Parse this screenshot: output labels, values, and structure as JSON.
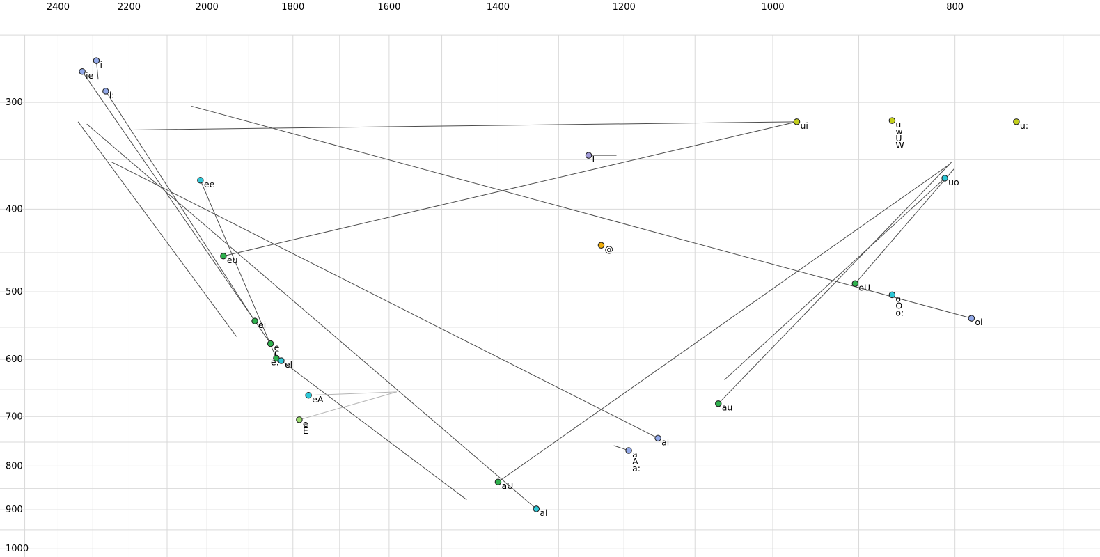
{
  "chart_data": {
    "type": "scatter",
    "title": "",
    "description": "Vowel formant plot: F2 (Hz, reversed, log scale) on x-axis vs F1 (Hz, reversed, log scale) on y-axis, with diphthong trajectory lines",
    "x_axis": {
      "unit": "Hz",
      "scale": "log",
      "direction": "reversed",
      "grid": [
        2500,
        2400,
        2300,
        2200,
        2100,
        2000,
        1900,
        1800,
        1700,
        1600,
        1500,
        1400,
        1300,
        1200,
        1100,
        1000,
        900,
        800,
        700
      ],
      "tick_labels": [
        2400,
        2200,
        2000,
        1800,
        1600,
        1400,
        1200,
        1000,
        800
      ]
    },
    "y_axis": {
      "unit": "Hz",
      "scale": "log",
      "direction": "reversed",
      "grid": [
        250,
        300,
        350,
        400,
        450,
        500,
        550,
        600,
        650,
        700,
        750,
        800,
        850,
        900,
        950,
        1000
      ],
      "tick_labels": [
        300,
        400,
        500,
        600,
        700,
        800,
        900,
        1000
      ]
    },
    "palette": {
      "blue": "#92a8e8",
      "cyan": "#2ec7d6",
      "green": "#2fb04d",
      "yellowgreen": "#c3cf1c",
      "orange": "#f0ad0a",
      "purple": "#a09ad8",
      "lightgreen": "#9bdc6e",
      "line_dark": "#4d4d4d",
      "line_light": "#b5b5b5",
      "grid": "#d9d9d9",
      "text": "#000000"
    },
    "points": [
      {
        "id": "i",
        "label_lines": [
          "i"
        ],
        "f2": 2290,
        "f1": 268,
        "color": "blue"
      },
      {
        "id": "ie",
        "label_lines": [
          "ie"
        ],
        "f2": 2330,
        "f1": 276,
        "color": "blue"
      },
      {
        "id": "i-long",
        "label_lines": [
          "i:"
        ],
        "f2": 2264,
        "f1": 291,
        "color": "blue"
      },
      {
        "id": "ee",
        "label_lines": [
          "ee"
        ],
        "f2": 2016,
        "f1": 370,
        "color": "cyan"
      },
      {
        "id": "eu",
        "label_lines": [
          "eu"
        ],
        "f2": 1960,
        "f1": 454,
        "color": "green"
      },
      {
        "id": "ei",
        "label_lines": [
          "ei"
        ],
        "f2": 1886,
        "f1": 541,
        "color": "green"
      },
      {
        "id": "e",
        "label_lines": [
          "e",
          "E"
        ],
        "f2": 1850,
        "f1": 575,
        "color": "green"
      },
      {
        "id": "e-long",
        "label_lines": [
          "e:"
        ],
        "f2": 1837,
        "f1": 598,
        "color": "green",
        "label_dx": -8
      },
      {
        "id": "el",
        "label_lines": [
          "el"
        ],
        "f2": 1826,
        "f1": 602,
        "color": "cyan",
        "label_dx": 5
      },
      {
        "id": "eA",
        "label_lines": [
          "eA"
        ],
        "f2": 1766,
        "f1": 661,
        "color": "cyan"
      },
      {
        "id": "e-gray",
        "label_lines": [
          "e",
          "E"
        ],
        "f2": 1786,
        "f1": 706,
        "color": "lightgreen",
        "label_color": "#8f8f8f"
      },
      {
        "id": "aU",
        "label_lines": [
          "aU"
        ],
        "f2": 1400,
        "f1": 835,
        "color": "green"
      },
      {
        "id": "al",
        "label_lines": [
          "al"
        ],
        "f2": 1336,
        "f1": 898,
        "color": "cyan"
      },
      {
        "id": "ai",
        "label_lines": [
          "ai"
        ],
        "f2": 1151,
        "f1": 742,
        "color": "blue"
      },
      {
        "id": "a",
        "label_lines": [
          "a",
          "A",
          "a:"
        ],
        "f2": 1193,
        "f1": 767,
        "color": "blue"
      },
      {
        "id": "au",
        "label_lines": [
          "au"
        ],
        "f2": 1069,
        "f1": 676,
        "color": "green"
      },
      {
        "id": "schwa",
        "label_lines": [
          "@"
        ],
        "f2": 1234,
        "f1": 441,
        "color": "orange"
      },
      {
        "id": "I",
        "label_lines": [
          "I"
        ],
        "f2": 1253,
        "f1": 346,
        "color": "purple"
      },
      {
        "id": "ui",
        "label_lines": [
          "ui"
        ],
        "f2": 971,
        "f1": 316,
        "color": "yellowgreen"
      },
      {
        "id": "u",
        "label_lines": [
          "u",
          "w",
          "U",
          "W"
        ],
        "f2": 864,
        "f1": 315,
        "color": "yellowgreen"
      },
      {
        "id": "u-long",
        "label_lines": [
          "u:"
        ],
        "f2": 742,
        "f1": 316,
        "color": "yellowgreen"
      },
      {
        "id": "uo",
        "label_lines": [
          "uo"
        ],
        "f2": 810,
        "f1": 368,
        "color": "cyan"
      },
      {
        "id": "oU",
        "label_lines": [
          "oU"
        ],
        "f2": 904,
        "f1": 489,
        "color": "green"
      },
      {
        "id": "o",
        "label_lines": [
          "o",
          "O",
          "o:"
        ],
        "f2": 864,
        "f1": 504,
        "color": "cyan"
      },
      {
        "id": "oi",
        "label_lines": [
          "oi"
        ],
        "f2": 784,
        "f1": 537,
        "color": "blue"
      }
    ],
    "lines": [
      {
        "from": [
          2290,
          268
        ],
        "to": [
          2285,
          282
        ],
        "color": "dark"
      },
      {
        "from": [
          2330,
          276
        ],
        "to": [
          1850,
          575
        ],
        "color": "dark"
      },
      {
        "from": [
          2016,
          370
        ],
        "to": [
          1837,
          598
        ],
        "color": "dark"
      },
      {
        "from": [
          1886,
          541
        ],
        "to": [
          2264,
          291
        ],
        "color": "dark"
      },
      {
        "from": [
          2342,
          316
        ],
        "to": [
          1929,
          564
        ],
        "color": "dark"
      },
      {
        "from": [
          1826,
          602
        ],
        "to": [
          1455,
          876
        ],
        "color": "dark"
      },
      {
        "from": [
          1766,
          661
        ],
        "to": [
          1585,
          655
        ],
        "color": "light"
      },
      {
        "from": [
          1786,
          706
        ],
        "to": [
          1585,
          655
        ],
        "color": "light"
      },
      {
        "from": [
          971,
          316
        ],
        "to": [
          2192,
          323
        ],
        "color": "dark"
      },
      {
        "from": [
          784,
          537
        ],
        "to": [
          2038,
          303
        ],
        "color": "dark"
      },
      {
        "from": [
          1151,
          742
        ],
        "to": [
          2249,
          352
        ],
        "color": "dark"
      },
      {
        "from": [
          1336,
          898
        ],
        "to": [
          2317,
          318
        ],
        "color": "dark"
      },
      {
        "from": [
          1400,
          835
        ],
        "to": [
          806,
          355
        ],
        "color": "dark"
      },
      {
        "from": [
          1069,
          676
        ],
        "to": [
          803,
          352
        ],
        "color": "dark"
      },
      {
        "from": [
          904,
          489
        ],
        "to": [
          801,
          359
        ],
        "color": "dark"
      },
      {
        "from": [
          810,
          368
        ],
        "to": [
          1061,
          634
        ],
        "color": "dark"
      },
      {
        "from": [
          1960,
          454
        ],
        "to": [
          971,
          316
        ],
        "color": "dark"
      },
      {
        "from": [
          1253,
          346
        ],
        "to": [
          1211,
          346
        ],
        "color": "dark"
      },
      {
        "from": [
          1193,
          767
        ],
        "to": [
          1215,
          757
        ],
        "color": "dark"
      }
    ]
  }
}
